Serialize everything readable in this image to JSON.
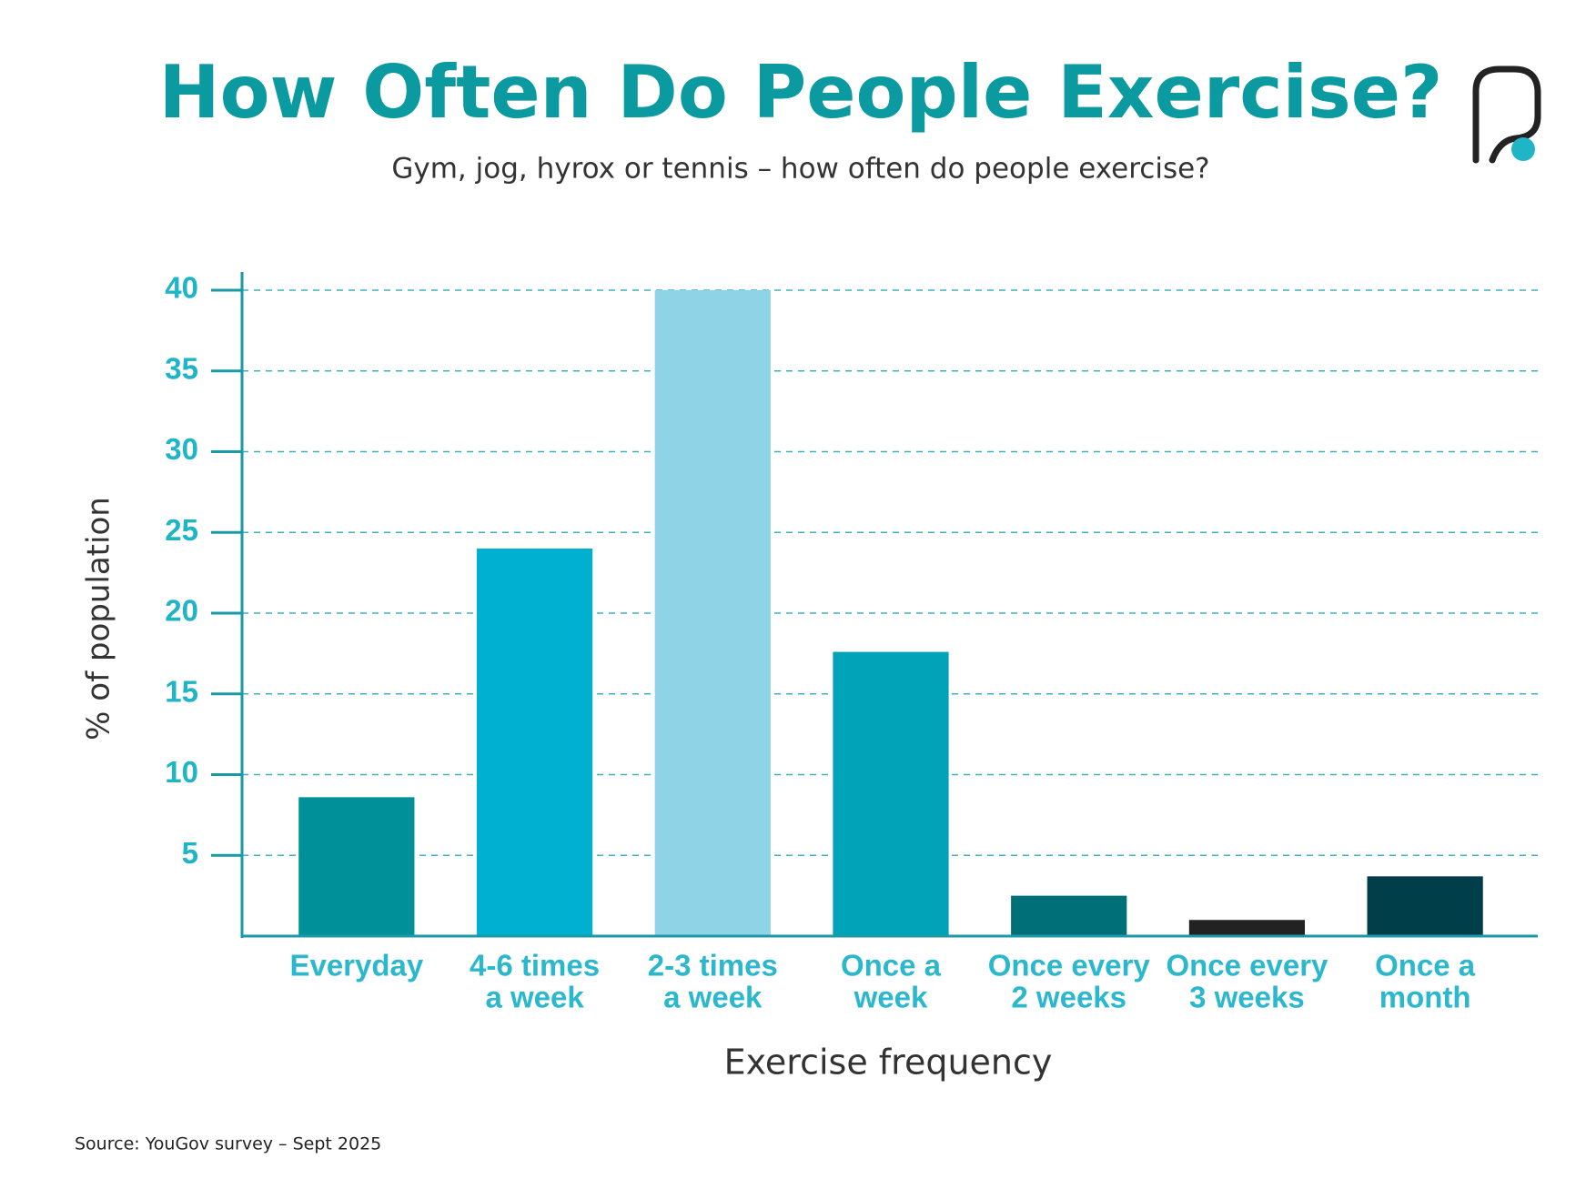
{
  "chart_data": {
    "type": "bar",
    "title": "How Often Do People Exercise?",
    "subtitle": "Gym, jog, hyrox or tennis – how often do people exercise?",
    "y_label": "% of population",
    "x_label": "Exercise frequency",
    "source": "Source: YouGov survey – Sept 2025",
    "categories": [
      [
        "Everyday"
      ],
      [
        "4-6 times",
        "a week"
      ],
      [
        "2-3 times",
        "a week"
      ],
      [
        "Once a",
        "week"
      ],
      [
        "Once every",
        "2 weeks"
      ],
      [
        "Once every",
        "3 weeks"
      ],
      [
        "Once a",
        "month"
      ]
    ],
    "values": [
      8.6,
      24,
      40,
      17.6,
      2.5,
      1,
      3.7
    ],
    "colors": [
      "#00909a",
      "#00b0d0",
      "#8fd3e6",
      "#00a3b8",
      "#006f78",
      "#222222",
      "#003f4a"
    ],
    "ylim": [
      0,
      40
    ],
    "yticks": [
      5,
      10,
      15,
      20,
      25,
      30,
      35,
      40
    ],
    "grid": true
  }
}
